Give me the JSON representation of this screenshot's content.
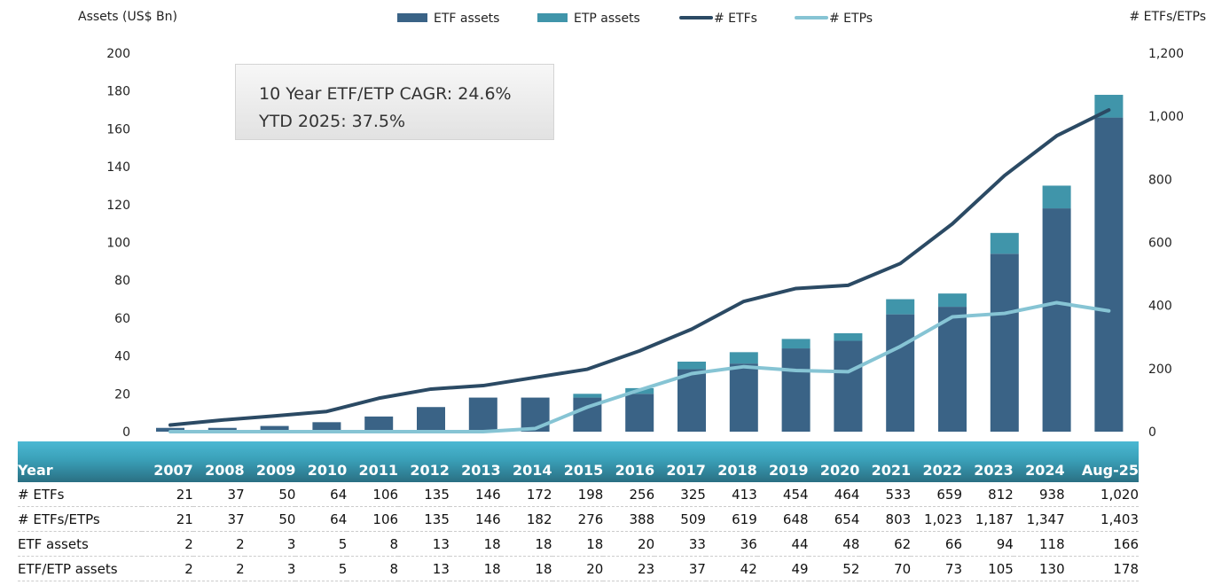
{
  "chart_data": {
    "type": "bar+line",
    "categories": [
      "2007",
      "2008",
      "2009",
      "2010",
      "2011",
      "2012",
      "2013",
      "2014",
      "2015",
      "2016",
      "2017",
      "2018",
      "2019",
      "2020",
      "2021",
      "2022",
      "2023",
      "2024",
      "Aug-25"
    ],
    "ylabel": "Assets (US$ Bn)",
    "y2label": "# ETFs/ETPs",
    "ylim": [
      0,
      200
    ],
    "y2lim": [
      0,
      1200
    ],
    "yticks": [
      "0",
      "20",
      "40",
      "60",
      "80",
      "100",
      "120",
      "140",
      "160",
      "180",
      "200"
    ],
    "y2ticks": [
      "0",
      "200",
      "400",
      "600",
      "800",
      "1,000",
      "1,200"
    ],
    "legend_position": "top",
    "series": [
      {
        "name": "ETF assets",
        "type": "bar",
        "axis": "left",
        "color": "#3a6386",
        "values": [
          2,
          2,
          3,
          5,
          8,
          13,
          18,
          18,
          18,
          20,
          33,
          36,
          44,
          48,
          62,
          66,
          94,
          118,
          166
        ]
      },
      {
        "name": "ETP assets",
        "type": "bar-stacked",
        "axis": "left",
        "color": "#4095aa",
        "values": [
          0,
          0,
          0,
          0,
          0,
          0,
          0,
          0,
          2,
          3,
          4,
          6,
          5,
          4,
          8,
          7,
          11,
          12,
          12
        ]
      },
      {
        "name": "# ETFs",
        "type": "line",
        "axis": "right",
        "color": "#2b4a64",
        "values": [
          21,
          37,
          50,
          64,
          106,
          135,
          146,
          172,
          198,
          256,
          325,
          413,
          454,
          464,
          533,
          659,
          812,
          938,
          1020
        ]
      },
      {
        "name": "# ETPs",
        "type": "line",
        "axis": "right",
        "color": "#86c4d4",
        "values": [
          0,
          0,
          0,
          0,
          0,
          0,
          0,
          10,
          78,
          132,
          184,
          206,
          194,
          190,
          270,
          364,
          375,
          409,
          383
        ]
      }
    ]
  },
  "annotation": {
    "line1": "10 Year ETF/ETP CAGR: 24.6%",
    "line2": "YTD 2025: 37.5%"
  },
  "table": {
    "header": [
      "Year",
      "2007",
      "2008",
      "2009",
      "2010",
      "2011",
      "2012",
      "2013",
      "2014",
      "2015",
      "2016",
      "2017",
      "2018",
      "2019",
      "2020",
      "2021",
      "2022",
      "2023",
      "2024",
      "Aug-25"
    ],
    "rows": [
      [
        "# ETFs",
        "21",
        "37",
        "50",
        "64",
        "106",
        "135",
        "146",
        "172",
        "198",
        "256",
        "325",
        "413",
        "454",
        "464",
        "533",
        "659",
        "812",
        "938",
        "1,020"
      ],
      [
        "# ETFs/ETPs",
        "21",
        "37",
        "50",
        "64",
        "106",
        "135",
        "146",
        "182",
        "276",
        "388",
        "509",
        "619",
        "648",
        "654",
        "803",
        "1,023",
        "1,187",
        "1,347",
        "1,403"
      ],
      [
        "ETF assets",
        "2",
        "2",
        "3",
        "5",
        "8",
        "13",
        "18",
        "18",
        "18",
        "20",
        "33",
        "36",
        "44",
        "48",
        "62",
        "66",
        "94",
        "118",
        "166"
      ],
      [
        "ETF/ETP assets",
        "2",
        "2",
        "3",
        "5",
        "8",
        "13",
        "18",
        "18",
        "20",
        "23",
        "37",
        "42",
        "49",
        "52",
        "70",
        "73",
        "105",
        "130",
        "178"
      ]
    ]
  }
}
